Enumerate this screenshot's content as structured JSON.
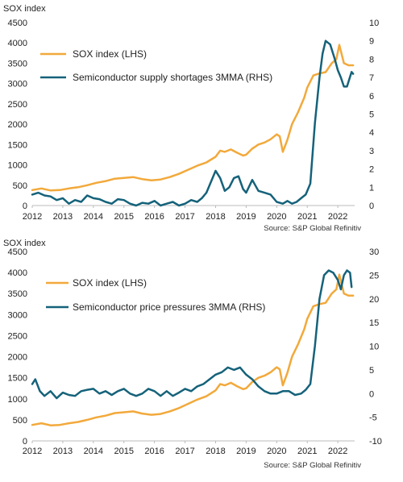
{
  "colors": {
    "sox": "#f2a93b",
    "rhs": "#15627a",
    "axis_text": "#222222",
    "source_text": "#333333",
    "axis_line": "#bbbbbb"
  },
  "chart_data": [
    {
      "type": "line",
      "y_left_title": "SOX index",
      "source": "Source: S&P Global  Refinitiv",
      "x_ticks": [
        "2012",
        "2013",
        "2014",
        "2015",
        "2016",
        "2017",
        "2018",
        "2019",
        "2020",
        "2021",
        "2022"
      ],
      "xlim": [
        2012.0,
        2022.55
      ],
      "ylim_left": [
        0,
        4500
      ],
      "yticks_left": [
        "0",
        "500",
        "1000",
        "1500",
        "2000",
        "2500",
        "3000",
        "3500",
        "4000",
        "4500"
      ],
      "ylim_right": [
        0,
        10
      ],
      "yticks_right": [
        "0",
        "1",
        "2",
        "3",
        "4",
        "5",
        "6",
        "7",
        "8",
        "9",
        "10"
      ],
      "legend_position": "top-left",
      "series": [
        {
          "name": "SOX index (LHS)",
          "axis": "left",
          "color_key": "sox",
          "x": [
            2012.0,
            2012.3,
            2012.6,
            2012.9,
            2013.2,
            2013.5,
            2013.8,
            2014.1,
            2014.4,
            2014.7,
            2015.0,
            2015.3,
            2015.6,
            2015.9,
            2016.2,
            2016.5,
            2016.8,
            2017.1,
            2017.4,
            2017.7,
            2018.0,
            2018.15,
            2018.3,
            2018.5,
            2018.7,
            2018.9,
            2019.0,
            2019.2,
            2019.4,
            2019.6,
            2019.8,
            2020.0,
            2020.1,
            2020.2,
            2020.35,
            2020.5,
            2020.7,
            2020.9,
            2021.0,
            2021.2,
            2021.4,
            2021.6,
            2021.8,
            2021.95,
            2022.05,
            2022.2,
            2022.35,
            2022.5
          ],
          "y": [
            380,
            420,
            370,
            380,
            420,
            450,
            500,
            560,
            600,
            660,
            680,
            700,
            650,
            620,
            640,
            700,
            780,
            880,
            980,
            1060,
            1200,
            1350,
            1320,
            1380,
            1300,
            1230,
            1250,
            1400,
            1500,
            1550,
            1630,
            1750,
            1700,
            1320,
            1620,
            2000,
            2300,
            2650,
            2900,
            3200,
            3250,
            3280,
            3500,
            3600,
            3950,
            3500,
            3450,
            3450
          ]
        },
        {
          "name": "Semiconductor supply shortages 3MMA (RHS)",
          "axis": "right",
          "color_key": "rhs",
          "x": [
            2012.0,
            2012.2,
            2012.4,
            2012.6,
            2012.8,
            2013.0,
            2013.2,
            2013.4,
            2013.6,
            2013.8,
            2014.0,
            2014.2,
            2014.4,
            2014.6,
            2014.8,
            2015.0,
            2015.2,
            2015.4,
            2015.6,
            2015.8,
            2016.0,
            2016.2,
            2016.4,
            2016.6,
            2016.8,
            2017.0,
            2017.2,
            2017.4,
            2017.55,
            2017.7,
            2017.85,
            2018.0,
            2018.15,
            2018.3,
            2018.45,
            2018.6,
            2018.75,
            2018.9,
            2019.0,
            2019.2,
            2019.4,
            2019.6,
            2019.8,
            2020.0,
            2020.2,
            2020.35,
            2020.5,
            2020.65,
            2020.8,
            2020.95,
            2021.1,
            2021.25,
            2021.4,
            2021.5,
            2021.6,
            2021.75,
            2021.9,
            2022.0,
            2022.1,
            2022.2,
            2022.3,
            2022.45,
            2022.5
          ],
          "y": [
            0.6,
            0.7,
            0.55,
            0.5,
            0.3,
            0.4,
            0.1,
            0.3,
            0.2,
            0.55,
            0.4,
            0.35,
            0.2,
            0.1,
            0.35,
            0.3,
            0.1,
            0.0,
            0.15,
            0.1,
            0.25,
            0.0,
            0.1,
            0.2,
            0.0,
            0.1,
            0.3,
            0.2,
            0.4,
            0.7,
            1.3,
            1.9,
            1.5,
            0.8,
            1.0,
            1.5,
            1.6,
            0.9,
            0.7,
            1.4,
            0.8,
            0.7,
            0.6,
            0.2,
            0.1,
            0.25,
            0.1,
            0.2,
            0.4,
            0.6,
            1.2,
            4.5,
            7.0,
            8.3,
            9.0,
            8.8,
            8.0,
            7.4,
            7.0,
            6.5,
            6.5,
            7.3,
            7.2
          ]
        }
      ]
    },
    {
      "type": "line",
      "y_left_title": "SOX index",
      "source": "Source: S&P Global  Refinitiv",
      "x_ticks": [
        "2012",
        "2013",
        "2014",
        "2015",
        "2016",
        "2017",
        "2018",
        "2019",
        "2020",
        "2021",
        "2022"
      ],
      "xlim": [
        2012.0,
        2022.55
      ],
      "ylim_left": [
        0,
        4500
      ],
      "yticks_left": [
        "0",
        "500",
        "1000",
        "1500",
        "2000",
        "2500",
        "3000",
        "3500",
        "4000",
        "4500"
      ],
      "ylim_right": [
        -10,
        30
      ],
      "yticks_right": [
        "-10",
        "-5",
        "0",
        "5",
        "10",
        "15",
        "20",
        "25",
        "30"
      ],
      "legend_position": "top-left",
      "series": [
        {
          "name": "SOX index (LHS)",
          "axis": "left",
          "color_key": "sox",
          "x": [
            2012.0,
            2012.3,
            2012.6,
            2012.9,
            2013.2,
            2013.5,
            2013.8,
            2014.1,
            2014.4,
            2014.7,
            2015.0,
            2015.3,
            2015.6,
            2015.9,
            2016.2,
            2016.5,
            2016.8,
            2017.1,
            2017.4,
            2017.7,
            2018.0,
            2018.15,
            2018.3,
            2018.5,
            2018.7,
            2018.9,
            2019.0,
            2019.2,
            2019.4,
            2019.6,
            2019.8,
            2020.0,
            2020.1,
            2020.2,
            2020.35,
            2020.5,
            2020.7,
            2020.9,
            2021.0,
            2021.2,
            2021.4,
            2021.6,
            2021.8,
            2021.95,
            2022.05,
            2022.2,
            2022.35,
            2022.5
          ],
          "y": [
            380,
            420,
            370,
            380,
            420,
            450,
            500,
            560,
            600,
            660,
            680,
            700,
            650,
            620,
            640,
            700,
            780,
            880,
            980,
            1060,
            1200,
            1350,
            1320,
            1380,
            1300,
            1230,
            1250,
            1400,
            1500,
            1550,
            1630,
            1750,
            1700,
            1320,
            1620,
            2000,
            2300,
            2650,
            2900,
            3200,
            3250,
            3280,
            3500,
            3600,
            3950,
            3500,
            3450,
            3450
          ]
        },
        {
          "name": "Semiconductor price pressures 3MMA (RHS)",
          "axis": "right",
          "color_key": "rhs",
          "x": [
            2012.0,
            2012.1,
            2012.25,
            2012.4,
            2012.6,
            2012.8,
            2013.0,
            2013.2,
            2013.4,
            2013.6,
            2013.8,
            2014.0,
            2014.2,
            2014.4,
            2014.6,
            2014.8,
            2015.0,
            2015.2,
            2015.4,
            2015.6,
            2015.8,
            2016.0,
            2016.2,
            2016.4,
            2016.6,
            2016.8,
            2017.0,
            2017.2,
            2017.4,
            2017.6,
            2017.8,
            2018.0,
            2018.2,
            2018.4,
            2018.6,
            2018.8,
            2019.0,
            2019.2,
            2019.4,
            2019.6,
            2019.8,
            2020.0,
            2020.2,
            2020.4,
            2020.6,
            2020.8,
            2020.95,
            2021.1,
            2021.25,
            2021.4,
            2021.55,
            2021.7,
            2021.85,
            2022.0,
            2022.1,
            2022.2,
            2022.3,
            2022.4,
            2022.45
          ],
          "y": [
            2.0,
            3.0,
            0.5,
            -0.5,
            0.5,
            -1.0,
            0.2,
            -0.3,
            -0.5,
            0.5,
            0.8,
            1.0,
            0.0,
            0.5,
            -0.3,
            0.5,
            1.0,
            0.0,
            -0.5,
            0.0,
            1.0,
            0.5,
            -0.5,
            0.5,
            -0.5,
            0.2,
            1.0,
            0.5,
            1.5,
            2.0,
            3.0,
            4.0,
            4.5,
            5.5,
            5.0,
            5.5,
            4.0,
            3.0,
            1.5,
            0.5,
            0.0,
            0.0,
            0.5,
            0.5,
            -0.3,
            0.0,
            0.8,
            2.0,
            10.0,
            20.0,
            25.0,
            26.0,
            25.5,
            24.0,
            22.0,
            25.0,
            26.0,
            25.5,
            22.5
          ]
        }
      ]
    }
  ]
}
